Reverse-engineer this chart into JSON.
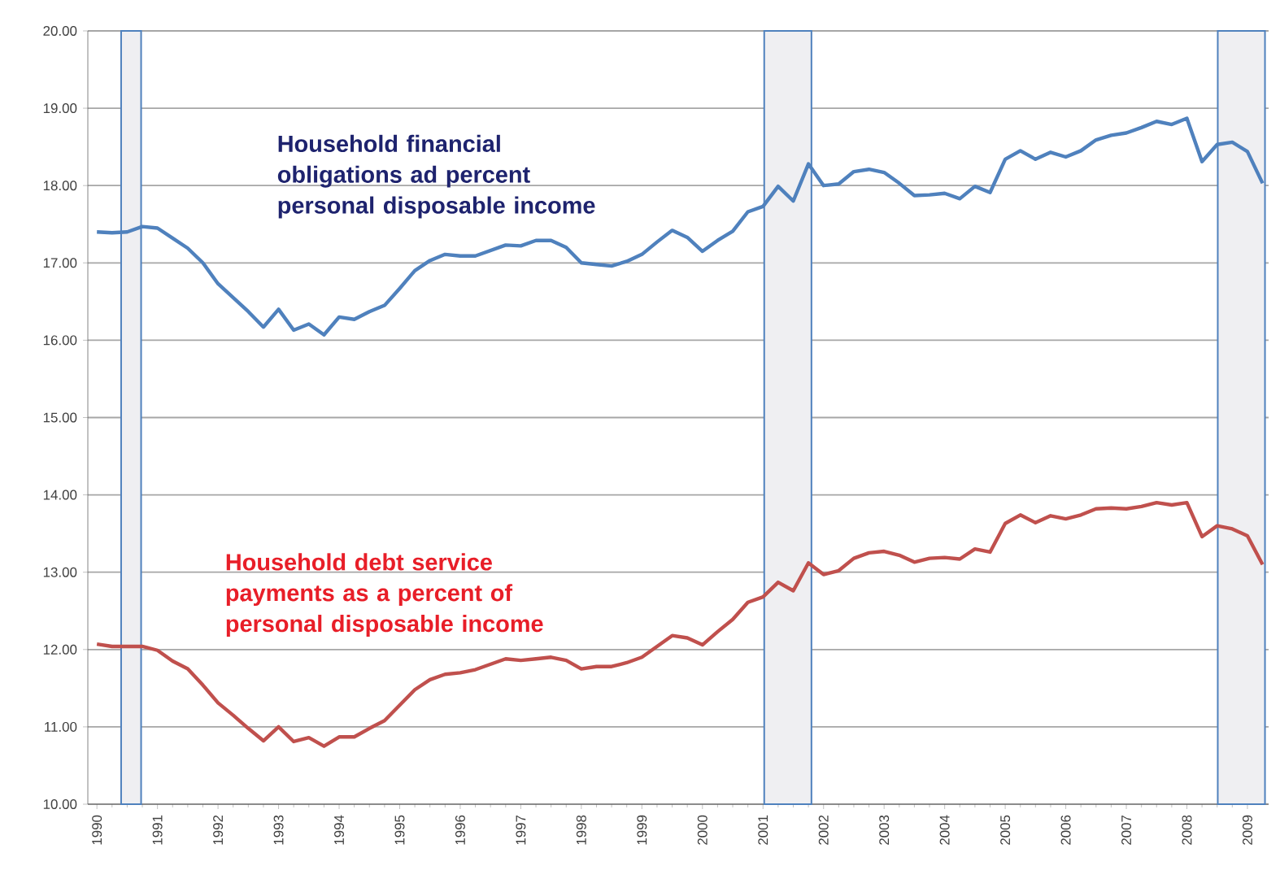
{
  "chart_data": {
    "type": "line",
    "x": [
      1990,
      1990.25,
      1990.5,
      1990.75,
      1991,
      1991.25,
      1991.5,
      1991.75,
      1992,
      1992.25,
      1992.5,
      1992.75,
      1993,
      1993.25,
      1993.5,
      1993.75,
      1994,
      1994.25,
      1994.5,
      1994.75,
      1995,
      1995.25,
      1995.5,
      1995.75,
      1996,
      1996.25,
      1996.5,
      1996.75,
      1997,
      1997.25,
      1997.5,
      1997.75,
      1998,
      1998.25,
      1998.5,
      1998.75,
      1999,
      1999.25,
      1999.5,
      1999.75,
      2000,
      2000.25,
      2000.5,
      2000.75,
      2001,
      2001.25,
      2001.5,
      2001.75,
      2002,
      2002.25,
      2002.5,
      2002.75,
      2003,
      2003.25,
      2003.5,
      2003.75,
      2004,
      2004.25,
      2004.5,
      2004.75,
      2005,
      2005.25,
      2005.5,
      2005.75,
      2006,
      2006.25,
      2006.5,
      2006.75,
      2007,
      2007.25,
      2007.5,
      2007.75,
      2008,
      2008.25,
      2008.5,
      2008.75,
      2009,
      2009.25
    ],
    "series": [
      {
        "name": "Household financial obligations ad percent personal disposable income",
        "color": "#4f81bd",
        "values": [
          17.4,
          17.39,
          17.4,
          17.47,
          17.45,
          17.32,
          17.19,
          17.0,
          16.73,
          16.55,
          16.37,
          16.17,
          16.4,
          16.13,
          16.21,
          16.07,
          16.3,
          16.27,
          16.37,
          16.45,
          16.67,
          16.9,
          17.03,
          17.11,
          17.09,
          17.09,
          17.16,
          17.23,
          17.22,
          17.29,
          17.29,
          17.2,
          17.0,
          16.98,
          16.96,
          17.02,
          17.11,
          17.27,
          17.42,
          17.33,
          17.15,
          17.29,
          17.41,
          17.66,
          17.73,
          17.99,
          17.8,
          18.28,
          18.0,
          18.02,
          18.18,
          18.21,
          18.17,
          18.03,
          17.87,
          17.88,
          17.9,
          17.83,
          17.99,
          17.91,
          18.34,
          18.45,
          18.34,
          18.43,
          18.37,
          18.45,
          18.59,
          18.65,
          18.68,
          18.75,
          18.83,
          18.79,
          18.87,
          18.31,
          18.53,
          18.56,
          18.44,
          18.03
        ]
      },
      {
        "name": "Household debt service payments as a percent of personal disposable income",
        "color": "#c0504d",
        "values": [
          12.07,
          12.04,
          12.04,
          12.04,
          11.99,
          11.85,
          11.75,
          11.54,
          11.31,
          11.15,
          10.98,
          10.82,
          11.0,
          10.81,
          10.86,
          10.75,
          10.87,
          10.87,
          10.98,
          11.08,
          11.28,
          11.48,
          11.61,
          11.68,
          11.7,
          11.74,
          11.81,
          11.88,
          11.86,
          11.88,
          11.9,
          11.86,
          11.75,
          11.78,
          11.78,
          11.83,
          11.9,
          12.04,
          12.18,
          12.15,
          12.06,
          12.23,
          12.39,
          12.61,
          12.68,
          12.87,
          12.76,
          13.12,
          12.97,
          13.02,
          13.18,
          13.25,
          13.27,
          13.22,
          13.13,
          13.18,
          13.19,
          13.17,
          13.3,
          13.26,
          13.63,
          13.74,
          13.64,
          13.73,
          13.69,
          13.74,
          13.82,
          13.83,
          13.82,
          13.85,
          13.9,
          13.87,
          13.9,
          13.46,
          13.6,
          13.56,
          13.47,
          13.1
        ]
      }
    ],
    "xlim": [
      1989.85,
      2009.35
    ],
    "xticks": [
      1990,
      1991,
      1992,
      1993,
      1994,
      1995,
      1996,
      1997,
      1998,
      1999,
      2000,
      2001,
      2002,
      2003,
      2004,
      2005,
      2006,
      2007,
      2008,
      2009
    ],
    "ylim": [
      10,
      20
    ],
    "yticks": [
      {
        "value": 10,
        "label": "10.00"
      },
      {
        "value": 11,
        "label": "11.00"
      },
      {
        "value": 12,
        "label": "12.00"
      },
      {
        "value": 13,
        "label": "13.00"
      },
      {
        "value": 14,
        "label": "14.00"
      },
      {
        "value": 15,
        "label": "15.00"
      },
      {
        "value": 16,
        "label": "16.00"
      },
      {
        "value": 17,
        "label": "17.00"
      },
      {
        "value": 18,
        "label": "18.00"
      },
      {
        "value": 19,
        "label": "19.00"
      },
      {
        "value": 20,
        "label": "20.00"
      }
    ],
    "bands": [
      {
        "axis": "x",
        "from": 1990.4,
        "to": 1990.73,
        "color": "#efeff2"
      },
      {
        "axis": "x",
        "from": 2001.02,
        "to": 2001.8,
        "color": "#efeff2"
      },
      {
        "axis": "x",
        "from": 2008.51,
        "to": 2009.29,
        "color": "#efeff2"
      }
    ],
    "grid": "y",
    "marker": "none",
    "line_style": "solid"
  }
}
